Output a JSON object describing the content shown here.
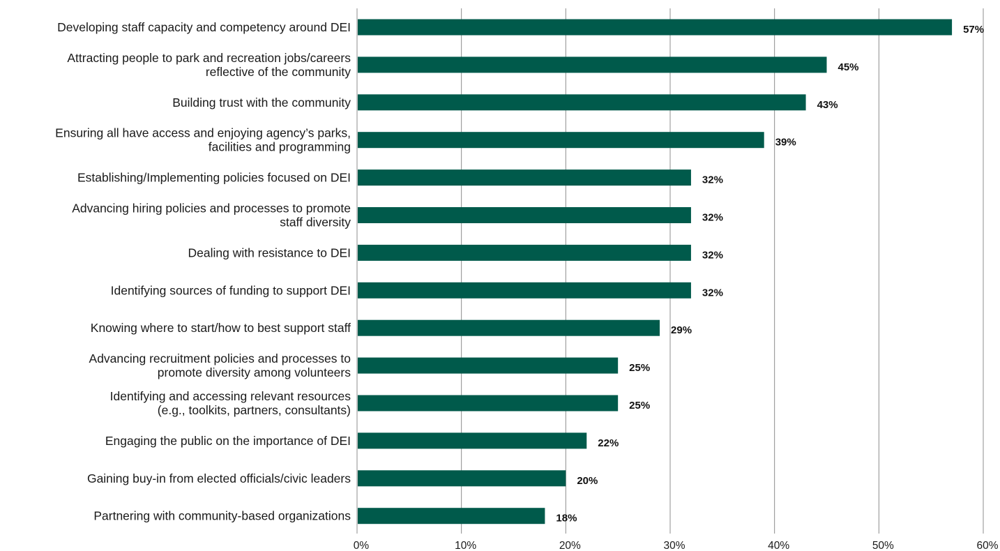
{
  "chart_data": {
    "type": "bar",
    "orientation": "horizontal",
    "title": "",
    "xlabel": "",
    "ylabel": "",
    "xlim": [
      0,
      60
    ],
    "x_ticks": [
      0,
      10,
      20,
      30,
      40,
      50,
      60
    ],
    "x_tick_labels": [
      "0%",
      "10%",
      "20%",
      "30%",
      "40%",
      "50%",
      "60%"
    ],
    "grid": "vertical",
    "legend": "none",
    "bar_color": "#005a4b",
    "categories": [
      [
        "Developing staff capacity and competency around DEI"
      ],
      [
        "Attracting people to park and recreation jobs/careers",
        "reflective of the community"
      ],
      [
        "Building trust with the community"
      ],
      [
        "Ensuring all have access and enjoying agency’s parks,",
        "facilities and programming"
      ],
      [
        "Establishing/Implementing policies focused on DEI"
      ],
      [
        "Advancing hiring policies and processes to promote",
        "staff diversity"
      ],
      [
        "Dealing with resistance to DEI"
      ],
      [
        "Identifying sources of funding to support DEI"
      ],
      [
        "Knowing where to start/how to best support staff"
      ],
      [
        "Advancing recruitment policies and processes to",
        "promote diversity among  volunteers"
      ],
      [
        "Identifying and accessing relevant resources",
        "(e.g., toolkits, partners, consultants)"
      ],
      [
        "Engaging the public on the importance of DEI"
      ],
      [
        "Gaining buy-in from elected officials/civic leaders"
      ],
      [
        "Partnering with community-based organizations"
      ]
    ],
    "values": [
      57,
      45,
      43,
      39,
      32,
      32,
      32,
      32,
      29,
      25,
      25,
      22,
      20,
      18
    ],
    "value_labels": [
      "57%",
      "45%",
      "43%",
      "39%",
      "32%",
      "32%",
      "32%",
      "32%",
      "29%",
      "25%",
      "25%",
      "22%",
      "20%",
      "18%"
    ]
  }
}
